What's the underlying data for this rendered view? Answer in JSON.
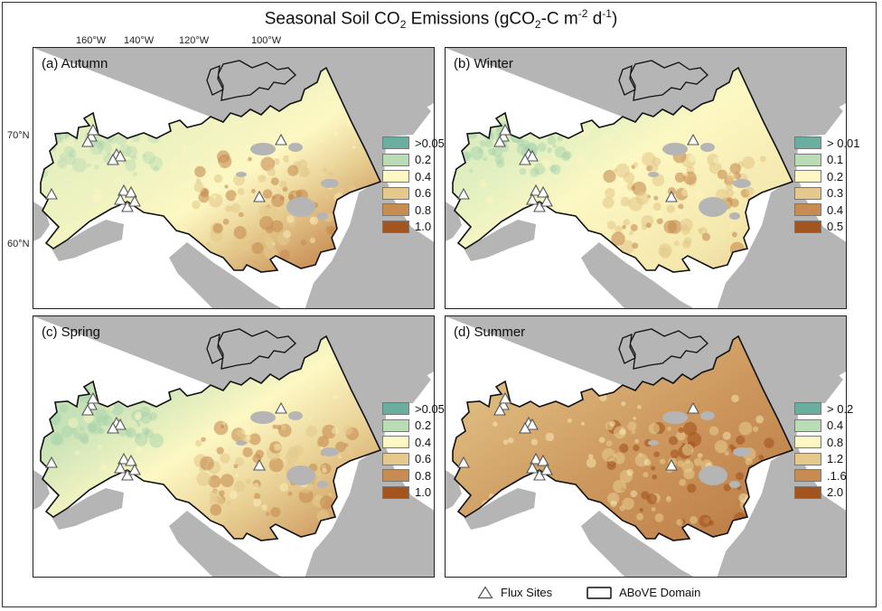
{
  "title": {
    "main": "Seasonal Soil CO",
    "sub1": "2",
    "mid": " Emissions (gCO",
    "sub2": "2",
    "mid2": "-C m",
    "sup1": "-2",
    "mid3": " d",
    "sup2": "-1",
    "end": ")"
  },
  "longitude_labels": [
    "160°W",
    "140°W",
    "120°W",
    "100°W"
  ],
  "latitude_labels": [
    "70°N",
    "60°N"
  ],
  "panels": [
    {
      "label": "(a) Autumn",
      "scheme": "autumn",
      "legend": [
        {
          "label": ">0.05",
          "color": "#6aaea0"
        },
        {
          "label": "0.2",
          "color": "#b9dcb4"
        },
        {
          "label": "0.4",
          "color": "#fdf8c3"
        },
        {
          "label": "0.6",
          "color": "#e5c98c"
        },
        {
          "label": "0.8",
          "color": "#c78c52"
        },
        {
          "label": "1.0",
          "color": "#a4541d"
        }
      ]
    },
    {
      "label": "(b) Winter",
      "scheme": "winter",
      "legend": [
        {
          "label": "> 0.01",
          "color": "#6aaea0"
        },
        {
          "label": "0.1",
          "color": "#b9dcb4"
        },
        {
          "label": "0.2",
          "color": "#fdf8c3"
        },
        {
          "label": "0.3",
          "color": "#e5c98c"
        },
        {
          "label": "0.4",
          "color": "#c78c52"
        },
        {
          "label": "0.5",
          "color": "#a4541d"
        }
      ]
    },
    {
      "label": "(c) Spring",
      "scheme": "spring",
      "legend": [
        {
          "label": ">0.05",
          "color": "#6aaea0"
        },
        {
          "label": "0.2",
          "color": "#b9dcb4"
        },
        {
          "label": "0.4",
          "color": "#fdf8c3"
        },
        {
          "label": "0.6",
          "color": "#e5c98c"
        },
        {
          "label": "0.8",
          "color": "#c78c52"
        },
        {
          "label": "1.0",
          "color": "#a4541d"
        }
      ]
    },
    {
      "label": "(d) Summer",
      "scheme": "summer",
      "legend": [
        {
          "label": "> 0.2",
          "color": "#6aaea0"
        },
        {
          "label": "0.4",
          "color": "#b9dcb4"
        },
        {
          "label": "0.8",
          "color": "#fdf8c3"
        },
        {
          "label": "1.2",
          "color": "#e5c98c"
        },
        {
          "label": ".1.6",
          "color": "#c78c52"
        },
        {
          "label": "2.0",
          "color": "#a4541d"
        }
      ]
    }
  ],
  "bottom_legend": {
    "flux_sites": "Flux Sites",
    "above_domain": "ABoVE Domain"
  },
  "colors": {
    "land_gray": "#b5b5b5",
    "water": "#ffffff",
    "outline": "#111111"
  }
}
